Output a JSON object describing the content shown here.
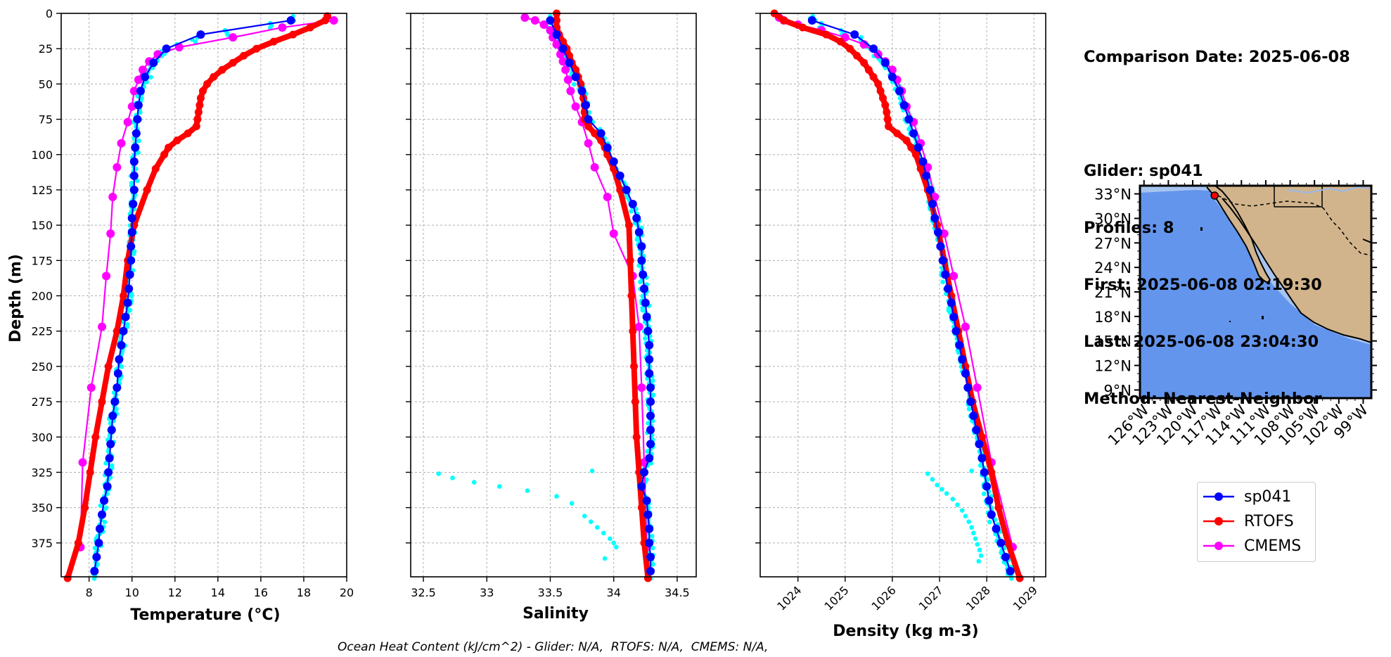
{
  "info": {
    "comparison_date": "Comparison Date: 2025-06-08",
    "glider": "Glider: sp041",
    "profiles": "Profiles: 8",
    "first": "First: 2025-06-08 02:19:30",
    "last": "Last: 2025-06-08 23:04:30",
    "method": "Method: Nearest-Neighbor"
  },
  "footer": "Ocean Heat Content (kJ/cm^2) - Glider: N/A,  RTOFS: N/A,  CMEMS: N/A,",
  "legend": [
    {
      "name": "sp041",
      "color": "#0000ff"
    },
    {
      "name": "RTOFS",
      "color": "#ff0000"
    },
    {
      "name": "CMEMS",
      "color": "#ff00ff"
    }
  ],
  "colors": {
    "glider_raw": "#00ffff",
    "ocean": "#6495ed",
    "shelf": "#a6c4ef",
    "land": "#d2b48c"
  },
  "chart_data": [
    {
      "type": "line",
      "xlabel": "Temperature (°C)",
      "ylabel": "Depth (m)",
      "xlim": [
        6.7,
        20
      ],
      "ylim": [
        399,
        0
      ],
      "xticks": [
        8,
        10,
        12,
        14,
        16,
        18,
        20
      ],
      "yticks": [
        0,
        25,
        50,
        75,
        100,
        125,
        150,
        175,
        200,
        225,
        250,
        275,
        300,
        325,
        350,
        375
      ],
      "grid": true,
      "series": [
        {
          "name": "sp041",
          "depth": [
            5,
            15,
            25,
            35,
            45,
            55,
            65,
            75,
            85,
            95,
            105,
            115,
            125,
            135,
            145,
            155,
            165,
            175,
            185,
            195,
            205,
            215,
            225,
            235,
            245,
            255,
            265,
            275,
            285,
            295,
            305,
            315,
            325,
            335,
            345,
            355,
            365,
            375,
            385,
            395
          ],
          "values": [
            17.4,
            13.2,
            11.6,
            11.0,
            10.6,
            10.4,
            10.3,
            10.25,
            10.2,
            10.15,
            10.1,
            10.1,
            10.1,
            10.05,
            10.0,
            10.0,
            9.95,
            9.95,
            9.9,
            9.85,
            9.8,
            9.7,
            9.6,
            9.5,
            9.4,
            9.35,
            9.3,
            9.2,
            9.1,
            9.05,
            9.0,
            8.95,
            8.9,
            8.85,
            8.7,
            8.6,
            8.5,
            8.45,
            8.35,
            8.25
          ]
        },
        {
          "name": "RTOFS",
          "depth": [
            2,
            5,
            10,
            15,
            20,
            25,
            30,
            35,
            40,
            45,
            50,
            55,
            60,
            65,
            70,
            75,
            80,
            85,
            90,
            95,
            100,
            110,
            125,
            150,
            175,
            200,
            225,
            250,
            275,
            300,
            325,
            350,
            375,
            400
          ],
          "values": [
            19.1,
            19.0,
            18.3,
            17.5,
            16.6,
            15.8,
            15.2,
            14.7,
            14.2,
            13.8,
            13.5,
            13.3,
            13.2,
            13.15,
            13.1,
            13.05,
            13.0,
            12.6,
            12.1,
            11.7,
            11.5,
            11.1,
            10.7,
            10.1,
            9.8,
            9.6,
            9.3,
            8.9,
            8.6,
            8.3,
            8.05,
            7.8,
            7.5,
            7.0
          ]
        },
        {
          "name": "CMEMS",
          "depth": [
            5,
            10,
            17,
            24,
            29,
            34,
            40,
            47,
            55,
            66,
            77,
            92,
            109,
            130,
            156,
            186,
            222,
            265,
            318,
            378
          ],
          "values": [
            19.4,
            17.0,
            14.7,
            12.2,
            11.2,
            10.8,
            10.5,
            10.3,
            10.1,
            10.0,
            9.8,
            9.5,
            9.3,
            9.1,
            9.0,
            8.8,
            8.6,
            8.1,
            7.7,
            7.6
          ]
        }
      ]
    },
    {
      "type": "line",
      "xlabel": "Salinity",
      "xlim": [
        32.4,
        34.65
      ],
      "ylim": [
        399,
        0
      ],
      "xticks": [
        32.5,
        33.0,
        33.5,
        34.0,
        34.5
      ],
      "grid": true,
      "series": [
        {
          "name": "sp041",
          "depth": [
            5,
            15,
            25,
            35,
            45,
            55,
            65,
            75,
            85,
            95,
            105,
            115,
            125,
            135,
            145,
            155,
            165,
            175,
            185,
            195,
            205,
            215,
            225,
            235,
            245,
            255,
            265,
            275,
            285,
            295,
            305,
            315,
            325,
            335,
            345,
            355,
            365,
            375,
            385,
            395
          ],
          "values": [
            33.5,
            33.55,
            33.6,
            33.65,
            33.7,
            33.75,
            33.78,
            33.8,
            33.9,
            33.95,
            34.0,
            34.05,
            34.1,
            34.15,
            34.18,
            34.2,
            34.22,
            34.22,
            34.23,
            34.24,
            34.25,
            34.26,
            34.27,
            34.28,
            34.28,
            34.28,
            34.29,
            34.29,
            34.29,
            34.29,
            34.29,
            34.28,
            34.24,
            34.22,
            34.26,
            34.27,
            34.28,
            34.28,
            34.29,
            34.29
          ]
        },
        {
          "name": "RTOFS",
          "depth": [
            0,
            5,
            10,
            15,
            20,
            25,
            30,
            35,
            40,
            45,
            50,
            55,
            60,
            65,
            70,
            75,
            80,
            85,
            90,
            95,
            100,
            110,
            125,
            150,
            175,
            200,
            225,
            250,
            275,
            300,
            325,
            350,
            375,
            400
          ],
          "values": [
            33.55,
            33.55,
            33.55,
            33.57,
            33.6,
            33.63,
            33.65,
            33.67,
            33.7,
            33.72,
            33.74,
            33.75,
            33.76,
            33.77,
            33.77,
            33.77,
            33.8,
            33.85,
            33.9,
            33.93,
            33.95,
            34.0,
            34.05,
            34.12,
            34.13,
            34.14,
            34.15,
            34.16,
            34.17,
            34.18,
            34.2,
            34.22,
            34.24,
            34.27
          ]
        },
        {
          "name": "CMEMS",
          "depth": [
            3,
            5,
            8,
            12,
            17,
            22,
            29,
            34,
            40,
            47,
            55,
            66,
            77,
            92,
            109,
            130,
            156,
            186,
            222,
            265,
            318,
            378
          ],
          "values": [
            33.3,
            33.38,
            33.45,
            33.5,
            33.52,
            33.55,
            33.58,
            33.6,
            33.62,
            33.64,
            33.66,
            33.7,
            33.75,
            33.8,
            33.85,
            33.95,
            34.0,
            34.15,
            34.2,
            34.22,
            34.24,
            34.26
          ]
        }
      ]
    },
    {
      "type": "line",
      "xlabel": "Density (kg m-3)",
      "xlim": [
        1023.2,
        1029.25
      ],
      "ylim": [
        399,
        0
      ],
      "xticks": [
        1024,
        1025,
        1026,
        1027,
        1028,
        1029
      ],
      "grid": true,
      "series": [
        {
          "name": "sp041",
          "depth": [
            5,
            15,
            25,
            35,
            45,
            55,
            65,
            75,
            85,
            95,
            105,
            115,
            125,
            135,
            145,
            155,
            165,
            175,
            185,
            195,
            205,
            215,
            225,
            235,
            245,
            255,
            265,
            275,
            285,
            295,
            305,
            315,
            325,
            335,
            345,
            355,
            365,
            375,
            385,
            395
          ],
          "values": [
            1024.3,
            1025.2,
            1025.6,
            1025.85,
            1026.0,
            1026.15,
            1026.25,
            1026.35,
            1026.45,
            1026.55,
            1026.65,
            1026.72,
            1026.8,
            1026.85,
            1026.9,
            1026.97,
            1027.02,
            1027.07,
            1027.12,
            1027.18,
            1027.25,
            1027.3,
            1027.35,
            1027.42,
            1027.48,
            1027.55,
            1027.6,
            1027.66,
            1027.72,
            1027.78,
            1027.84,
            1027.9,
            1027.95,
            1028.0,
            1028.05,
            1028.1,
            1028.2,
            1028.3,
            1028.4,
            1028.5
          ]
        },
        {
          "name": "RTOFS",
          "depth": [
            0,
            5,
            10,
            15,
            20,
            25,
            30,
            35,
            40,
            45,
            50,
            55,
            60,
            65,
            70,
            75,
            80,
            85,
            90,
            95,
            100,
            110,
            125,
            150,
            175,
            200,
            225,
            250,
            275,
            300,
            325,
            350,
            375,
            400
          ],
          "values": [
            1023.5,
            1023.7,
            1024.1,
            1024.6,
            1024.9,
            1025.1,
            1025.25,
            1025.4,
            1025.5,
            1025.6,
            1025.7,
            1025.75,
            1025.8,
            1025.85,
            1025.88,
            1025.9,
            1025.92,
            1026.1,
            1026.3,
            1026.4,
            1026.5,
            1026.6,
            1026.75,
            1026.95,
            1027.1,
            1027.25,
            1027.4,
            1027.55,
            1027.7,
            1027.9,
            1028.1,
            1028.25,
            1028.45,
            1028.7
          ]
        },
        {
          "name": "CMEMS",
          "depth": [
            3,
            5,
            8,
            12,
            17,
            22,
            29,
            34,
            40,
            47,
            55,
            66,
            77,
            92,
            109,
            130,
            156,
            186,
            222,
            265,
            318,
            378
          ],
          "values": [
            1023.6,
            1023.7,
            1024.0,
            1024.5,
            1025.0,
            1025.4,
            1025.7,
            1025.85,
            1026.0,
            1026.1,
            1026.2,
            1026.3,
            1026.45,
            1026.6,
            1026.75,
            1026.9,
            1027.1,
            1027.3,
            1027.55,
            1027.8,
            1028.1,
            1028.55
          ]
        }
      ]
    },
    {
      "type": "map",
      "lon_ticks": [
        "126°W",
        "123°W",
        "120°W",
        "117°W",
        "114°W",
        "111°W",
        "108°W",
        "105°W",
        "102°W",
        "99°W"
      ],
      "lat_ticks": [
        "33°N",
        "30°N",
        "27°N",
        "24°N",
        "21°N",
        "18°N",
        "15°N",
        "12°N",
        "9°N"
      ],
      "lon_values": [
        -126,
        -123,
        -120,
        -117,
        -114,
        -111,
        -108,
        -105,
        -102,
        -99
      ],
      "lat_values": [
        33,
        30,
        27,
        24,
        21,
        18,
        15,
        12,
        9
      ],
      "extent": [
        -126.5,
        -98,
        8,
        34
      ],
      "glider_location": {
        "lon": -117.3,
        "lat": 32.8
      }
    }
  ]
}
